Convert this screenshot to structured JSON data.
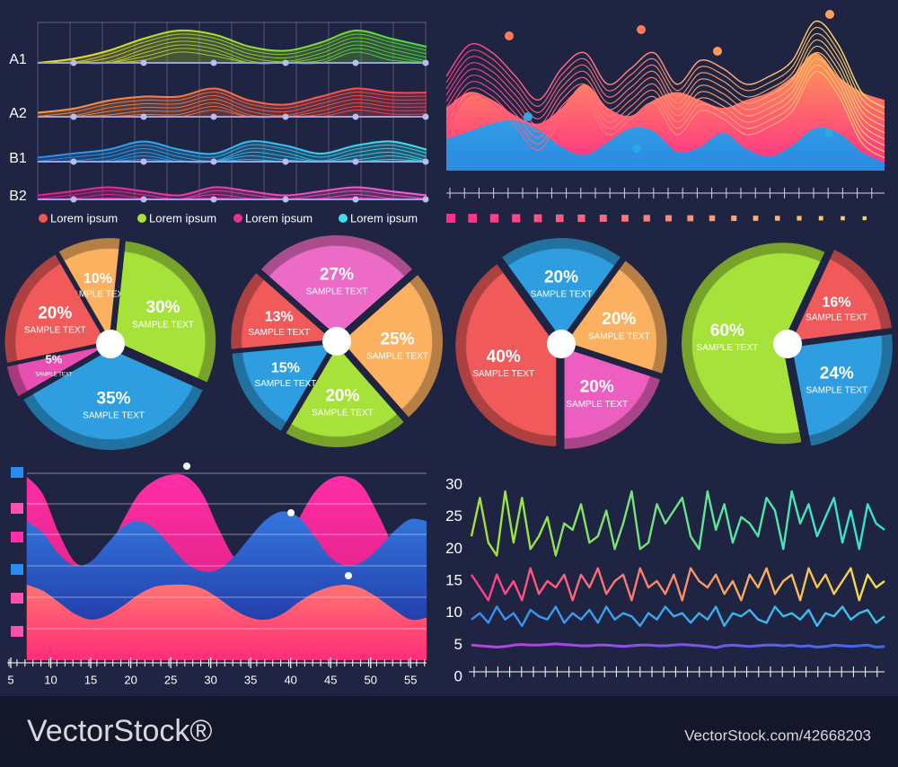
{
  "chart_data": [
    {
      "type": "ridgeline",
      "ylim": [
        0,
        10
      ],
      "series": [
        {
          "name": "A1",
          "colors": [
            "#f4e01a",
            "#4fdc3c"
          ],
          "values": [
            0,
            1,
            3,
            6,
            8,
            7,
            4,
            3,
            5,
            8,
            6,
            4
          ]
        },
        {
          "name": "A2",
          "colors": [
            "#ff9a3c",
            "#ff3d4f"
          ],
          "values": [
            1,
            2,
            4,
            5,
            5,
            7,
            4,
            3,
            5,
            7,
            6,
            6
          ]
        },
        {
          "name": "B1",
          "colors": [
            "#2a8cf0",
            "#3ee6f0"
          ],
          "values": [
            1,
            2,
            3,
            5,
            3,
            2,
            5,
            4,
            2,
            4,
            5,
            3
          ]
        },
        {
          "name": "B2",
          "colors": [
            "#e81e8c",
            "#ff5fd2"
          ],
          "values": [
            1,
            2,
            3,
            2,
            1,
            3,
            2,
            1,
            2,
            3,
            2,
            1
          ]
        }
      ],
      "legend": [
        {
          "name": "Lorem ipsum",
          "color": "#f0584f"
        },
        {
          "name": "Lorem ipsum",
          "color": "#a6e23a"
        },
        {
          "name": "Lorem ipsum",
          "color": "#e8328f"
        },
        {
          "name": "Lorem ipsum",
          "color": "#3ee0f0"
        }
      ]
    },
    {
      "type": "mountain",
      "ylim": [
        0,
        10
      ],
      "series": [
        {
          "kind": "area",
          "colors": [
            "#fbc040",
            "#ff2d8a"
          ],
          "values": [
            4,
            5,
            4.5,
            3.5,
            3,
            4,
            5.5,
            4,
            3.5,
            4.5,
            5,
            4.5,
            4,
            4.5,
            5,
            6,
            7.5,
            6,
            5,
            4.5
          ]
        },
        {
          "kind": "area",
          "colors": [
            "#3ec6f0",
            "#2a8ae0"
          ],
          "values": [
            2,
            2.5,
            3,
            3.2,
            2.6,
            1.5,
            1,
            1.8,
            2.7,
            2.5,
            1.2,
            1.5,
            2.4,
            1.4,
            0.9,
            1.6,
            2.7,
            2.4,
            1.2,
            0.5
          ]
        },
        {
          "kind": "line",
          "colors": [
            "#ff3d8a",
            "#ffe066"
          ],
          "values": [
            6,
            8,
            7.5,
            6,
            4.5,
            6.5,
            7.5,
            5.5,
            6.5,
            7.5,
            5.5,
            7,
            6.5,
            5.5,
            6,
            7,
            9.5,
            8,
            5,
            4
          ]
        }
      ]
    },
    {
      "type": "pie",
      "categories": [
        "SAMPLE TEXT",
        "SAMPLE TEXT",
        "SAMPLE TEXT",
        "SAMPLE TEXT",
        "SAMPLE TEXT"
      ],
      "values": [
        10,
        30,
        35,
        5,
        20
      ],
      "value_labels": [
        "10%",
        "30%",
        "35%",
        "5%",
        "20%"
      ],
      "colors": [
        "#fbb160",
        "#a6e23a",
        "#2e9ee0",
        "#e84fb0",
        "#f05a5a"
      ]
    },
    {
      "type": "pie",
      "categories": [
        "SAMPLE TEXT",
        "SAMPLE TEXT",
        "SAMPLE TEXT",
        "SAMPLE TEXT",
        "SAMPLE TEXT"
      ],
      "values": [
        27,
        25,
        20,
        15,
        13
      ],
      "value_labels": [
        "27%",
        "25%",
        "20%",
        "15%",
        "13%"
      ],
      "colors": [
        "#ec6bc6",
        "#fbb160",
        "#a6e23a",
        "#2e9ee0",
        "#f05a5a"
      ]
    },
    {
      "type": "pie",
      "categories": [
        "SAMPLE TEXT",
        "SAMPLE TEXT",
        "SAMPLE TEXT",
        "SAMPLE TEXT"
      ],
      "values": [
        20,
        20,
        20,
        40
      ],
      "value_labels": [
        "20%",
        "20%",
        "20%",
        "40%"
      ],
      "colors": [
        "#2e9ee0",
        "#fbb160",
        "#ec5fc0",
        "#f05a5a"
      ]
    },
    {
      "type": "pie",
      "categories": [
        "SAMPLE TEXT",
        "SAMPLE TEXT",
        "SAMPLE TEXT"
      ],
      "values": [
        16,
        24,
        60
      ],
      "value_labels": [
        "16%",
        "24%",
        "60%"
      ],
      "colors": [
        "#f05a5a",
        "#2e9ee0",
        "#a6e23a"
      ]
    },
    {
      "type": "area",
      "xlim": [
        5,
        58
      ],
      "xticks": [
        5,
        10,
        15,
        20,
        25,
        30,
        35,
        40,
        45,
        50,
        55
      ],
      "ylim": [
        0,
        10
      ],
      "grid": true,
      "x": [
        7,
        9,
        11,
        13,
        15,
        17,
        19,
        21,
        23,
        25,
        27,
        29,
        31,
        33,
        35,
        37,
        39,
        41,
        43,
        45,
        47,
        49,
        51,
        53,
        55,
        57
      ],
      "series": [
        {
          "colors": [
            "#ff2fa8",
            "#d81b7a"
          ],
          "values": [
            9.5,
            8.6,
            6.6,
            5.1,
            4.9,
            5.6,
            7.2,
            8.6,
            9.3,
            9.6,
            9.5,
            8.6,
            6.8,
            5.3,
            4.9,
            4.9,
            5.7,
            7.3,
            8.7,
            9.4,
            9.5,
            9.0,
            7.5,
            5.8,
            5.0,
            5.0
          ]
        },
        {
          "colors": [
            "#3a8ef0",
            "#1e2a9a"
          ],
          "values": [
            7.2,
            6.6,
            5.5,
            4.9,
            5.1,
            6.0,
            6.9,
            7.2,
            6.8,
            5.9,
            5.0,
            4.6,
            4.7,
            5.4,
            6.4,
            7.3,
            7.7,
            7.4,
            6.4,
            5.3,
            4.9,
            5.1,
            5.8,
            6.7,
            7.3,
            7.2
          ]
        },
        {
          "colors": [
            "#ffe066",
            "#ff2d78"
          ],
          "values": [
            3.9,
            3.6,
            3.0,
            2.4,
            2.1,
            2.3,
            2.8,
            3.4,
            3.8,
            3.9,
            3.9,
            3.7,
            3.2,
            2.6,
            2.2,
            2.1,
            2.4,
            3.0,
            3.5,
            3.8,
            3.9,
            3.7,
            3.2,
            2.6,
            2.1,
            2.2
          ]
        }
      ]
    },
    {
      "type": "line",
      "ylim": [
        0,
        30
      ],
      "yticks": [
        0,
        5,
        10,
        15,
        20,
        25,
        30
      ],
      "series": [
        {
          "colors": [
            "#a6e23a",
            "#2ee6d6"
          ],
          "values": [
            22,
            28,
            21,
            19,
            29,
            21,
            28,
            20,
            22,
            25,
            19,
            24,
            23,
            27,
            21,
            22,
            26,
            20,
            24,
            29,
            20,
            21,
            27,
            24,
            26,
            28,
            22,
            20,
            29,
            23,
            27,
            21,
            25,
            24,
            22,
            28,
            26,
            20,
            29,
            24,
            27,
            22,
            25,
            28,
            21,
            26,
            20,
            27,
            24,
            23
          ]
        },
        {
          "colors": [
            "#ff3d8a",
            "#f4e04a"
          ],
          "values": [
            16,
            14,
            12,
            16,
            13,
            15,
            12,
            17,
            13,
            15,
            14,
            16,
            12,
            16,
            14,
            17,
            13,
            15,
            16,
            12,
            17,
            14,
            15,
            13,
            16,
            12,
            17,
            15,
            14,
            16,
            13,
            15,
            12,
            16,
            14,
            17,
            13,
            15,
            16,
            12,
            17,
            14,
            16,
            13,
            15,
            17,
            12,
            16,
            14,
            15
          ]
        },
        {
          "colors": [
            "#3a8ef0",
            "#3ec6f0"
          ],
          "values": [
            9,
            10,
            8.5,
            11,
            9,
            10,
            8,
            10.5,
            9.5,
            9,
            11,
            8.5,
            10,
            9,
            10.5,
            8.5,
            11,
            9,
            10,
            9.5,
            8,
            10,
            9,
            11,
            9.5,
            10,
            8.5,
            10,
            9,
            11,
            8,
            10,
            9.5,
            10.5,
            9,
            8.5,
            11,
            9.5,
            10,
            9,
            10.5,
            8,
            10,
            9.5,
            11,
            9,
            10,
            10.5,
            8.5,
            9.5
          ]
        },
        {
          "colors": [
            "#c040e0",
            "#3a6af0"
          ],
          "values": [
            5,
            4.9,
            4.8,
            4.7,
            4.8,
            5,
            5.1,
            5,
            5,
            5.1,
            5.2,
            5.1,
            5,
            4.9,
            4.9,
            5,
            5,
            4.9,
            4.8,
            4.9,
            5,
            5,
            4.9,
            4.9,
            5,
            5.1,
            5,
            4.9,
            4.8,
            4.6,
            4.9,
            5,
            4.9,
            4.8,
            4.9,
            5,
            5,
            4.9,
            5,
            4.8,
            4.9,
            4.7,
            4.8,
            5,
            4.9,
            4.8,
            4.9,
            5,
            4.7,
            4.8
          ]
        }
      ]
    }
  ],
  "watermark": {
    "brand": "VectorStock®",
    "url": "VectorStock.com/42668203"
  }
}
